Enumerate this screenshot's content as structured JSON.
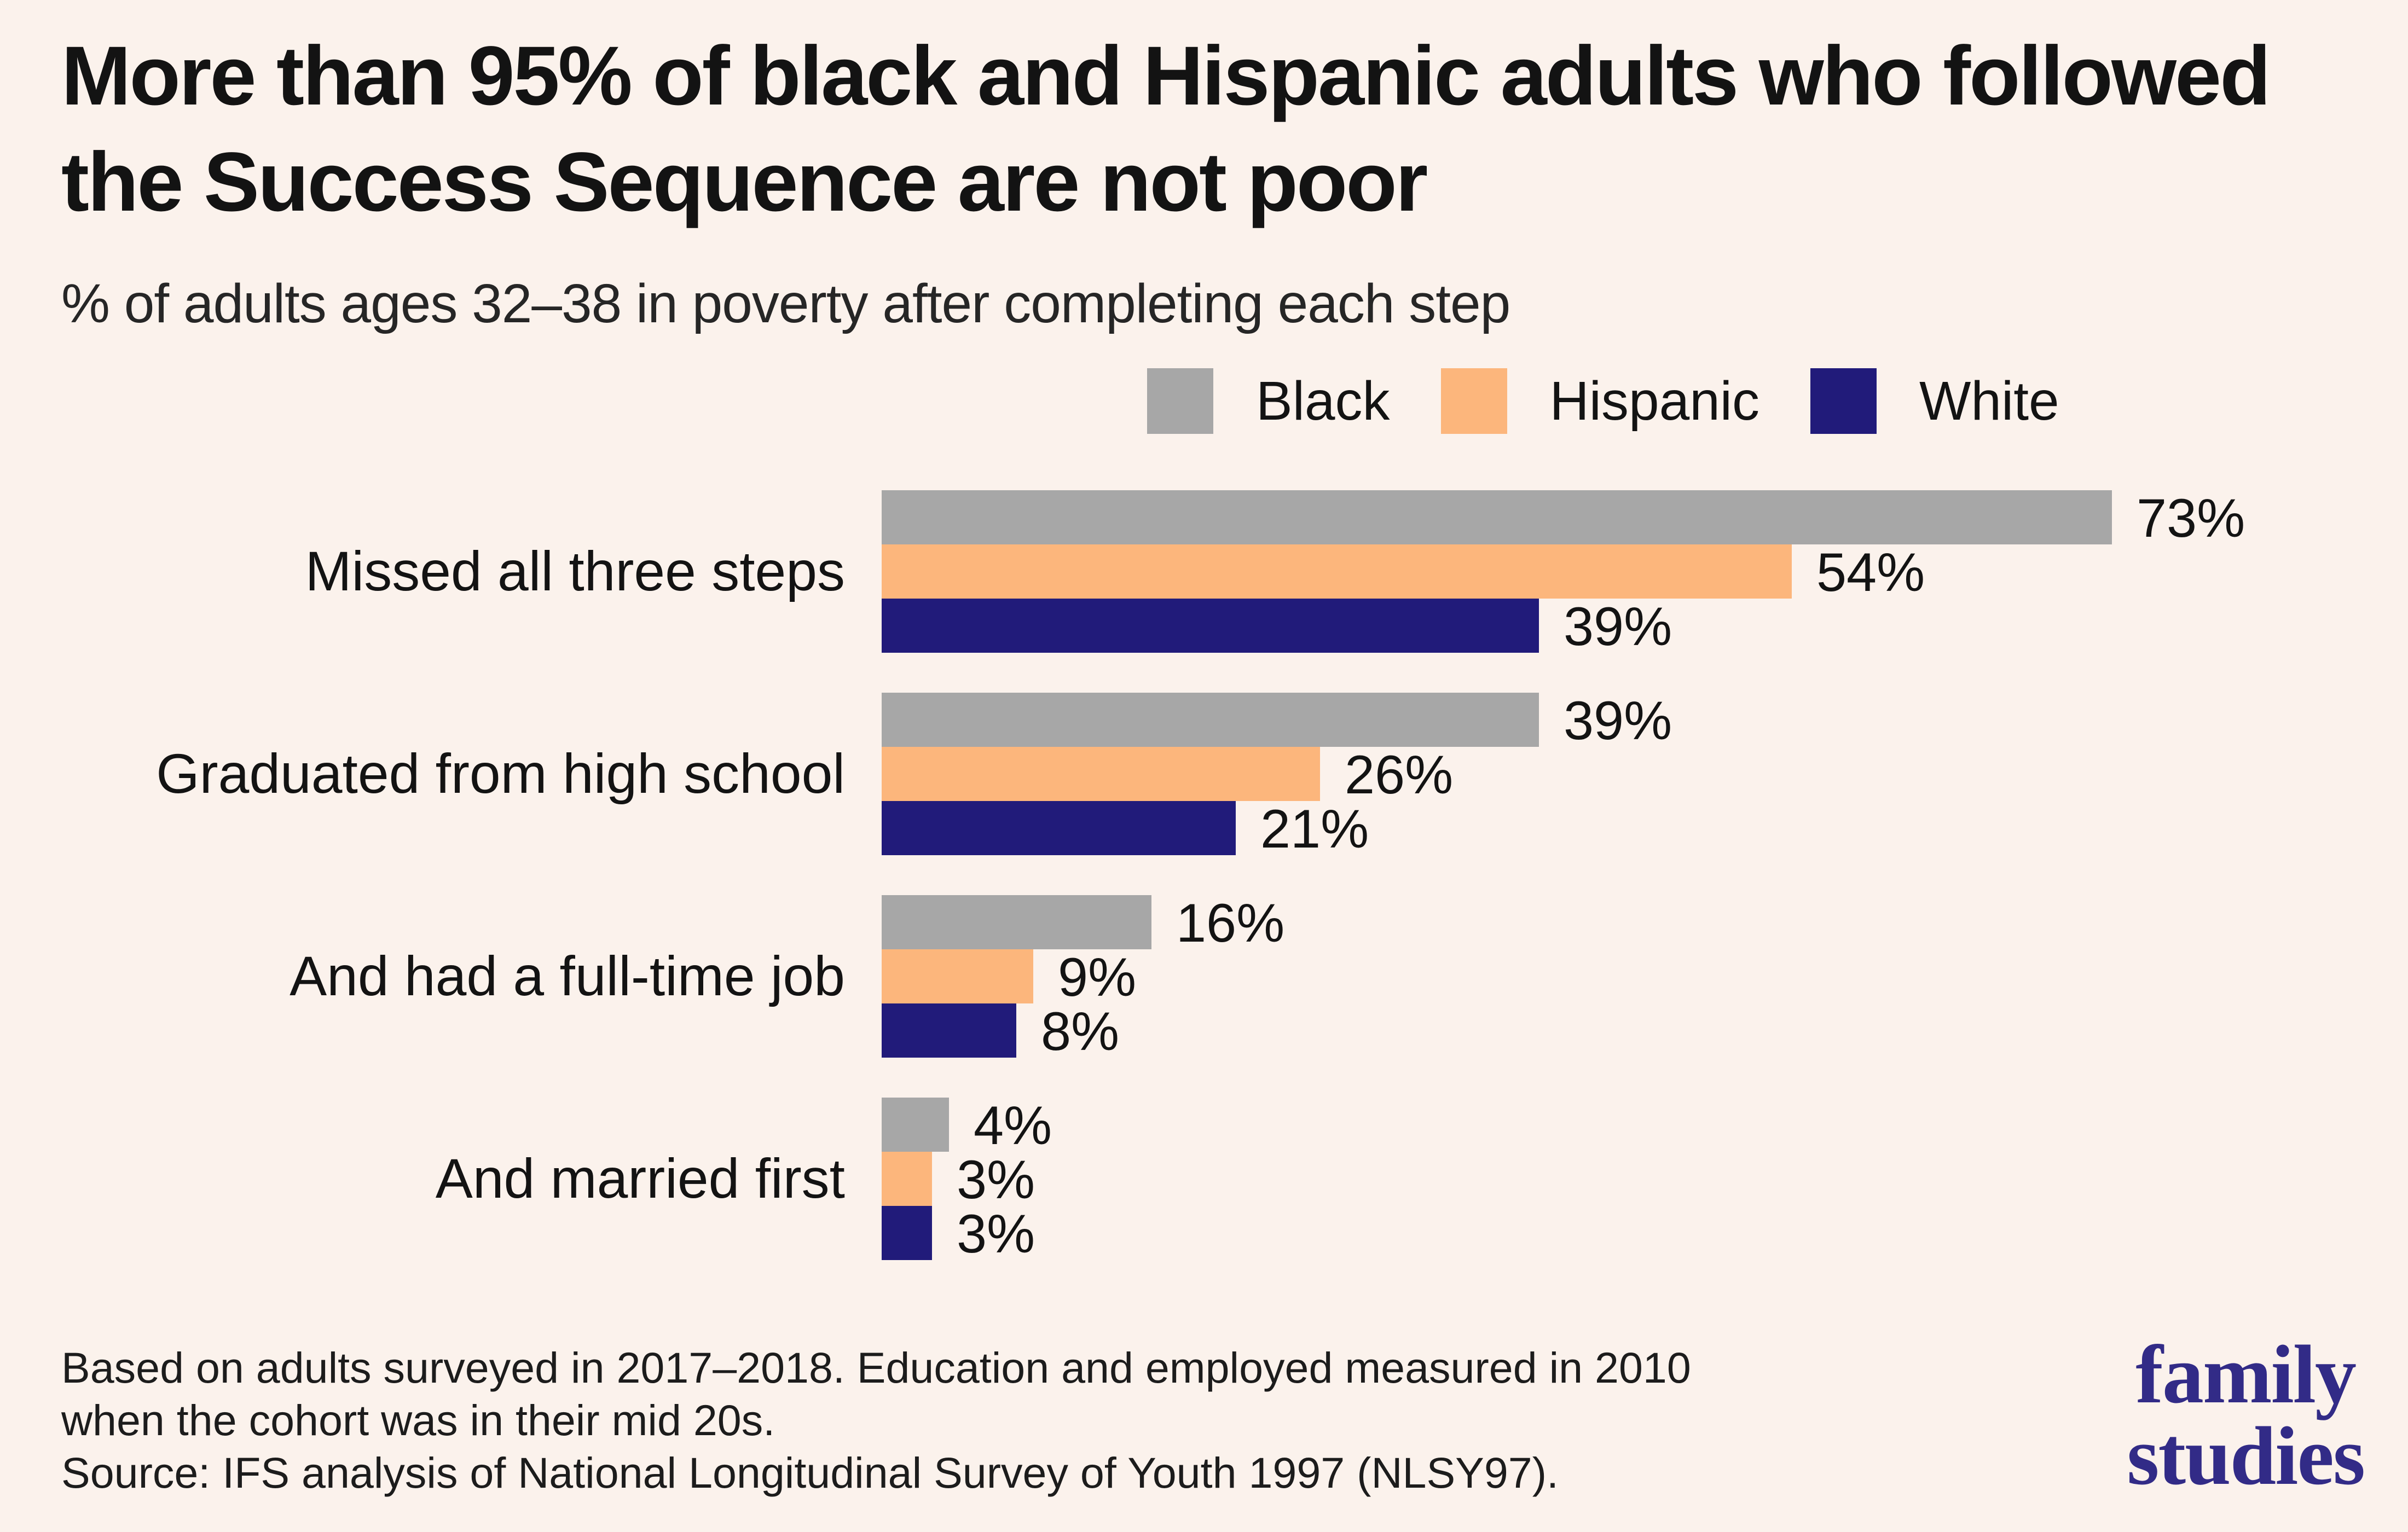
{
  "page": {
    "background": "#fbf2ec"
  },
  "title": "More than 95% of black and Hispanic adults who followed the Success Sequence are not poor",
  "subtitle": "% of adults ages 32–38 in poverty after completing each step",
  "legend": {
    "items": [
      {
        "label": "Black",
        "color": "#a7a7a7"
      },
      {
        "label": "Hispanic",
        "color": "#fcb67c"
      },
      {
        "label": "White",
        "color": "#211b7a"
      }
    ]
  },
  "chart_data": {
    "type": "bar",
    "orientation": "horizontal",
    "title": "More than 95% of black and Hispanic adults who followed the Success Sequence are not poor",
    "subtitle": "% of adults ages 32–38 in poverty after completing each step",
    "categories": [
      "Missed all three steps",
      "Graduated from high school",
      "And had a full-time job",
      "And married first"
    ],
    "series": [
      {
        "name": "Black",
        "color": "#a7a7a7",
        "values": [
          73,
          39,
          16,
          4
        ]
      },
      {
        "name": "Hispanic",
        "color": "#fcb67c",
        "values": [
          54,
          26,
          9,
          3
        ]
      },
      {
        "name": "White",
        "color": "#211b7a",
        "values": [
          39,
          21,
          8,
          3
        ]
      }
    ],
    "value_suffix": "%",
    "xlim": [
      0,
      80
    ],
    "grid": false,
    "legend_position": "top-right",
    "value_labels": "outside-end"
  },
  "footnote": {
    "lines": [
      "Based on adults surveyed in 2017–2018. Education and employed measured in 2010",
      "when the cohort was in their mid 20s.",
      "Source: IFS analysis of National Longitudinal Survey of Youth 1997 (NLSY97)."
    ]
  },
  "logo": {
    "line1": "family",
    "line2": "studies",
    "color": "#322b87"
  }
}
